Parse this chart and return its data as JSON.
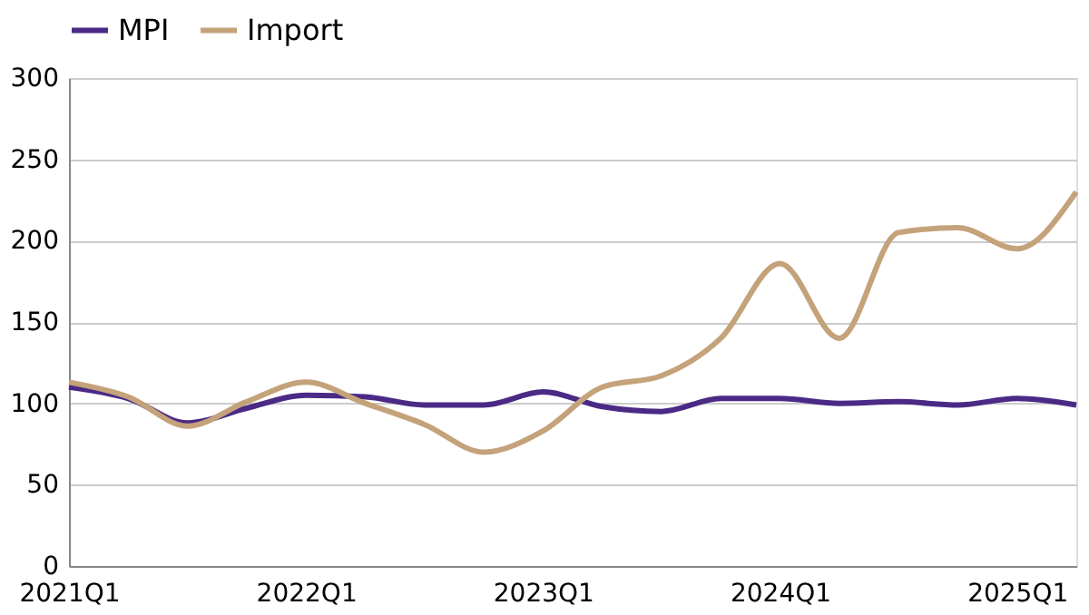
{
  "chart_data": {
    "type": "line",
    "categories": [
      "2021Q1",
      null,
      null,
      null,
      "2022Q1",
      null,
      null,
      null,
      "2023Q1",
      null,
      null,
      null,
      "2024Q1",
      null,
      null,
      null,
      "2025Q1",
      null
    ],
    "series": [
      {
        "name": "MPI",
        "color": "#4b2a86",
        "values": [
          110,
          103,
          88,
          97,
          105,
          104,
          99,
          99,
          107,
          98,
          95,
          103,
          103,
          100,
          101,
          99,
          103,
          99
        ]
      },
      {
        "name": "Import",
        "color": "#c4a27a",
        "values": [
          113,
          104,
          86,
          101,
          113,
          100,
          87,
          70,
          83,
          110,
          117,
          140,
          186,
          140,
          205,
          208,
          195,
          230
        ]
      }
    ],
    "ylim": [
      0,
      300
    ],
    "yticks": [
      0,
      50,
      100,
      150,
      200,
      250,
      300
    ],
    "grid": "y",
    "legend": "top",
    "marker": "none",
    "line_style": "solid"
  }
}
